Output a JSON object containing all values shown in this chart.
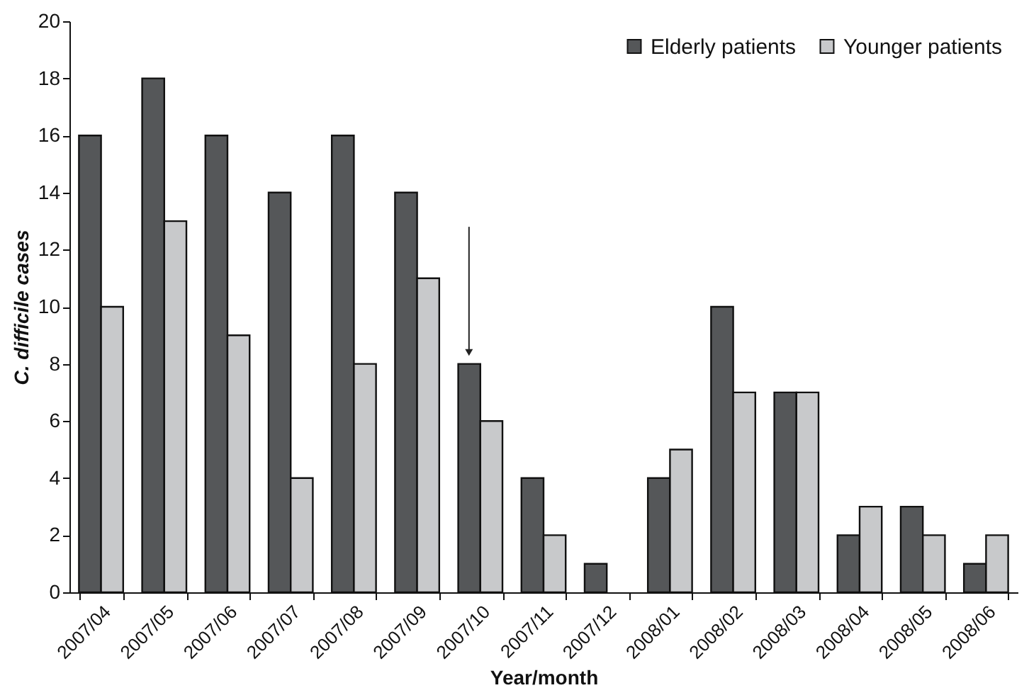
{
  "chart_data": {
    "type": "bar",
    "xlabel": "Year/month",
    "ylabel": "C. difficile cases",
    "categories": [
      "2007/04",
      "2007/05",
      "2007/06",
      "2007/07",
      "2007/08",
      "2007/09",
      "2007/10",
      "2007/11",
      "2007/12",
      "2008/01",
      "2008/02",
      "2008/03",
      "2008/04",
      "2008/05",
      "2008/06"
    ],
    "series": [
      {
        "name": "Elderly patients",
        "color": "#555759",
        "values": [
          16,
          18,
          16,
          14,
          16,
          14,
          8,
          4,
          1,
          4,
          10,
          7,
          2,
          3,
          1
        ]
      },
      {
        "name": "Younger patients",
        "color": "#c8c9cb",
        "values": [
          10,
          13,
          9,
          4,
          8,
          11,
          6,
          2,
          0,
          5,
          7,
          7,
          3,
          2,
          2
        ]
      }
    ],
    "ylim": [
      0,
      20
    ],
    "yticks": [
      0,
      2,
      4,
      6,
      8,
      10,
      12,
      14,
      16,
      18,
      20
    ],
    "grid": false,
    "legend": "top right"
  }
}
